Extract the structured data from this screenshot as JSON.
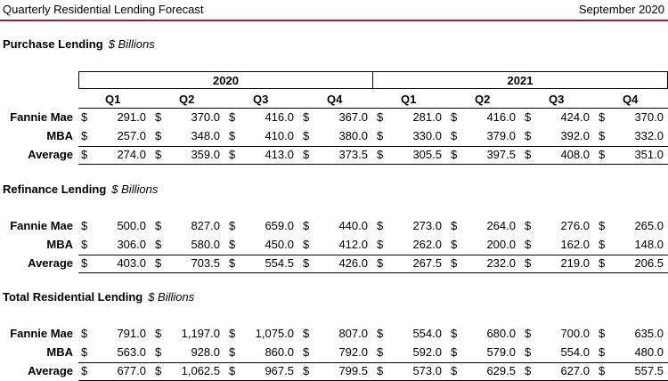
{
  "header": {
    "title": "Quarterly Residential Lending Forecast",
    "date": "September 2020"
  },
  "years": [
    "2020",
    "2021"
  ],
  "quarters": [
    "Q1",
    "Q2",
    "Q3",
    "Q4",
    "Q1",
    "Q2",
    "Q3",
    "Q4"
  ],
  "sections": [
    {
      "title": "Purchase Lending",
      "unit": "$ Billions",
      "rows": [
        {
          "label": "Fannie Mae",
          "values": [
            "291.0",
            "370.0",
            "416.0",
            "367.0",
            "281.0",
            "416.0",
            "424.0",
            "370.0"
          ]
        },
        {
          "label": "MBA",
          "values": [
            "257.0",
            "348.0",
            "410.0",
            "380.0",
            "330.0",
            "379.0",
            "392.0",
            "332.0"
          ]
        },
        {
          "label": "Average",
          "values": [
            "274.0",
            "359.0",
            "413.0",
            "373.5",
            "305.5",
            "397.5",
            "408.0",
            "351.0"
          ]
        }
      ]
    },
    {
      "title": "Refinance Lending",
      "unit": "$ Billions",
      "rows": [
        {
          "label": "Fannie Mae",
          "values": [
            "500.0",
            "827.0",
            "659.0",
            "440.0",
            "273.0",
            "264.0",
            "276.0",
            "265.0"
          ]
        },
        {
          "label": "MBA",
          "values": [
            "306.0",
            "580.0",
            "450.0",
            "412.0",
            "262.0",
            "200.0",
            "162.0",
            "148.0"
          ]
        },
        {
          "label": "Average",
          "values": [
            "403.0",
            "703.5",
            "554.5",
            "426.0",
            "267.5",
            "232.0",
            "219.0",
            "206.5"
          ]
        }
      ]
    },
    {
      "title": "Total Residential Lending",
      "unit": "$ Billions",
      "rows": [
        {
          "label": "Fannie Mae",
          "values": [
            "791.0",
            "1,197.0",
            "1,075.0",
            "807.0",
            "554.0",
            "680.0",
            "700.0",
            "635.0"
          ]
        },
        {
          "label": "MBA",
          "values": [
            "563.0",
            "928.0",
            "860.0",
            "792.0",
            "592.0",
            "579.0",
            "554.0",
            "480.0"
          ]
        },
        {
          "label": "Average",
          "values": [
            "677.0",
            "1,062.5",
            "967.5",
            "799.5",
            "573.0",
            "629.5",
            "627.0",
            "557.5"
          ]
        }
      ]
    }
  ],
  "currency_symbol": "$"
}
